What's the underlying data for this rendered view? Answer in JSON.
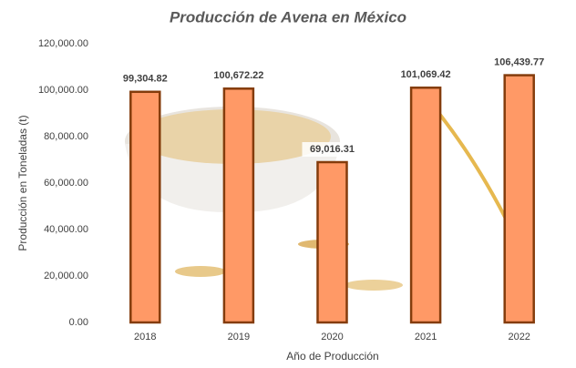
{
  "chart_data": {
    "type": "bar",
    "title": "Producción de Avena en México",
    "x_label": "Año de Producción",
    "y_label": "Producción en Toneladas (t)",
    "categories": [
      "2018",
      "2019",
      "2020",
      "2021",
      "2022"
    ],
    "values": [
      99304.82,
      100672.22,
      69016.31,
      101069.42,
      106439.77
    ],
    "value_labels": [
      "99,304.82",
      "100,672.22",
      "69,016.31",
      "101,069.42",
      "106,439.77"
    ],
    "color": "#ff9966",
    "ylim": [
      0,
      120000
    ],
    "yticks": [
      {
        "value": 0,
        "label": "0.00"
      },
      {
        "value": 20000,
        "label": "20,000.00"
      },
      {
        "value": 40000,
        "label": "40,000.00"
      },
      {
        "value": 60000,
        "label": "60,000.00"
      },
      {
        "value": 80000,
        "label": "80,000.00"
      },
      {
        "value": 100000,
        "label": "100,000.00"
      },
      {
        "value": 120000,
        "label": "120,000.00"
      }
    ],
    "grid": false
  }
}
